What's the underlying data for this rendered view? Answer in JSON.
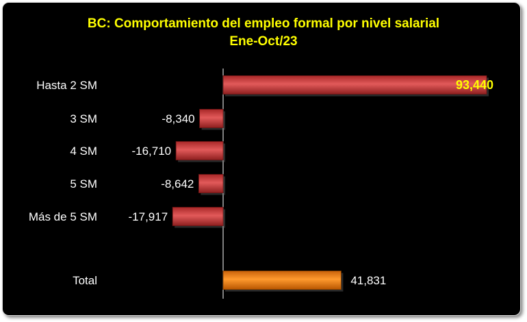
{
  "chart_data": {
    "type": "bar",
    "orientation": "horizontal",
    "title": "BC: Comportamiento del empleo formal por nivel salarial",
    "subtitle": "Ene-Oct/23",
    "categories": [
      "Hasta 2 SM",
      "3 SM",
      "4 SM",
      "5 SM",
      "Más de 5 SM",
      "Total"
    ],
    "values": [
      93440,
      -8340,
      -16710,
      -8642,
      -17917,
      41831
    ],
    "value_labels": [
      "93,440",
      "-8,340",
      "-16,710",
      "-8,642",
      "-17,917",
      "41,831"
    ],
    "highlight_label_index": 0,
    "colors": {
      "background": "#000000",
      "title": "#ffff00",
      "bar": "#d94545",
      "bar_total": "#f28a1c",
      "axis": "#ffffff",
      "text": "#ffffff"
    },
    "xlim": [
      -18000,
      93440
    ],
    "grid": false,
    "legend": "none"
  }
}
